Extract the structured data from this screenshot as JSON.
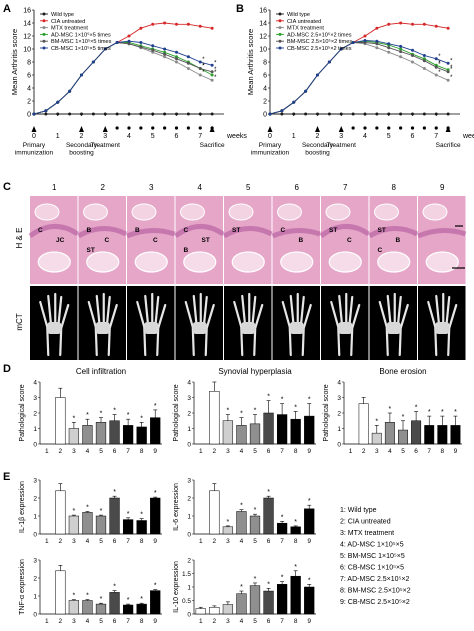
{
  "panel_labels": [
    "A",
    "B",
    "C",
    "D",
    "E"
  ],
  "colors": {
    "wild_type": "#1a1a1a",
    "cia": "#d62728",
    "mtx": "#8c8c8c",
    "ad": "#2ca02c",
    "bm": "#555555",
    "cb": "#1f3f8f",
    "histo_pink": "#e6a6c8",
    "histo_purple": "#b05a9c",
    "bar_open": "#ffffff",
    "bar_light": "#cfcfcf",
    "bar_mid": "#8f8f8f",
    "bar_dark": "#4a4a4a",
    "bar_black": "#000000"
  },
  "timeline": {
    "unit": "weeks",
    "events": [
      {
        "week": 0,
        "label": "Primary immunization"
      },
      {
        "week": 2,
        "label": "Secondary boosting"
      },
      {
        "week": 3,
        "label": "Treatment"
      },
      {
        "week": 7.5,
        "label": "Sacrifice"
      }
    ]
  },
  "panel_C": {
    "columns": [
      "1",
      "2",
      "3",
      "4",
      "5",
      "6",
      "7",
      "8",
      "9"
    ],
    "row_labels": [
      "H & E",
      "mCT"
    ],
    "tissue_labels": [
      {
        "col": 0,
        "text": "C"
      },
      {
        "col": 0,
        "text": "JC"
      },
      {
        "col": 1,
        "text": "B"
      },
      {
        "col": 1,
        "text": "C"
      },
      {
        "col": 1,
        "text": "ST"
      },
      {
        "col": 2,
        "text": "B"
      },
      {
        "col": 2,
        "text": "C"
      },
      {
        "col": 3,
        "text": "C"
      },
      {
        "col": 3,
        "text": "ST"
      },
      {
        "col": 3,
        "text": "B"
      },
      {
        "col": 4,
        "text": "ST"
      },
      {
        "col": 5,
        "text": "C"
      },
      {
        "col": 5,
        "text": "B"
      },
      {
        "col": 6,
        "text": "ST"
      },
      {
        "col": 6,
        "text": "C"
      },
      {
        "col": 7,
        "text": "ST"
      },
      {
        "col": 7,
        "text": "B"
      },
      {
        "col": 7,
        "text": "C"
      }
    ]
  },
  "group_legend": [
    "1: Wild type",
    "2: CIA untreated",
    "3: MTX treatment",
    "4: AD-MSC 1×10⁵×5",
    "5: BM-MSC 1×10⁵×5",
    "6: CB-MSC 1×10⁵×5",
    "7: AD-MSC 2.5×10⁵×2",
    "8: BM-MSC 2.5×10⁵×2",
    "9: CB-MSC 2.5×10⁵×2"
  ],
  "chart_data": [
    {
      "panel": "A",
      "type": "line",
      "ylabel": "Mean Arthritis score",
      "xlabel": "weeks",
      "xlim": [
        0,
        8
      ],
      "ylim": [
        0,
        16
      ],
      "yticks": [
        0,
        2,
        4,
        6,
        8,
        10,
        12,
        14,
        16
      ],
      "xticks": [
        0,
        1,
        2,
        3,
        4,
        5,
        6,
        7
      ],
      "x": [
        0,
        0.5,
        1,
        1.5,
        2,
        2.5,
        3,
        3.5,
        4,
        4.5,
        5,
        5.5,
        6,
        6.5,
        7,
        7.5
      ],
      "legend_position": "top-left",
      "series": [
        {
          "name": "Wild type",
          "key": "wild_type",
          "values": [
            0,
            0,
            0,
            0,
            0,
            0,
            0,
            0,
            0,
            0,
            0,
            0,
            0,
            0,
            0,
            0
          ]
        },
        {
          "name": "CIA untreated",
          "key": "cia",
          "values": [
            0,
            0.5,
            1.8,
            3.5,
            6,
            8,
            10,
            11,
            12,
            13.2,
            13.8,
            14,
            13.8,
            13.8,
            13.5,
            13.2
          ]
        },
        {
          "name": "MTX treatment",
          "key": "mtx",
          "values": [
            0,
            0.5,
            1.8,
            3.5,
            6,
            8,
            10,
            11,
            10.8,
            10.2,
            9.5,
            8.8,
            8,
            7,
            6,
            5.2
          ]
        },
        {
          "name": "AD-MSC 1×10⁵×5 times",
          "key": "ad",
          "values": [
            0,
            0.5,
            1.8,
            3.5,
            6,
            8,
            10,
            11,
            11,
            10.5,
            10,
            9.5,
            8.8,
            8,
            7,
            6
          ]
        },
        {
          "name": "BM-MSC 1×10⁵×5 times",
          "key": "bm",
          "values": [
            0,
            0.5,
            1.8,
            3.5,
            6,
            8,
            10,
            11,
            10.8,
            10.3,
            9.8,
            9.2,
            8.5,
            7.8,
            7,
            6.5
          ]
        },
        {
          "name": "CB-MSC 1×10⁵×5 times",
          "key": "cb",
          "values": [
            0,
            0.5,
            1.8,
            3.5,
            6,
            8,
            10,
            11,
            11.2,
            11,
            10.5,
            10,
            9.5,
            8.8,
            8,
            7.5
          ]
        }
      ],
      "significance_label": "*"
    },
    {
      "panel": "B",
      "type": "line",
      "ylabel": "Mean Arthritis score",
      "xlabel": "weeks",
      "xlim": [
        0,
        8
      ],
      "ylim": [
        0,
        16
      ],
      "yticks": [
        0,
        2,
        4,
        6,
        8,
        10,
        12,
        14,
        16
      ],
      "xticks": [
        0,
        1,
        2,
        3,
        4,
        5,
        6,
        7
      ],
      "x": [
        0,
        0.5,
        1,
        1.5,
        2,
        2.5,
        3,
        3.5,
        4,
        4.5,
        5,
        5.5,
        6,
        6.5,
        7,
        7.5
      ],
      "legend_position": "top-left",
      "series": [
        {
          "name": "Wild type",
          "key": "wild_type",
          "values": [
            0,
            0,
            0,
            0,
            0,
            0,
            0,
            0,
            0,
            0,
            0,
            0,
            0,
            0,
            0,
            0
          ]
        },
        {
          "name": "CIA untreated",
          "key": "cia",
          "values": [
            0,
            0.5,
            1.8,
            3.5,
            6,
            8,
            10,
            11,
            12,
            13.2,
            13.8,
            14,
            13.8,
            13.8,
            13.5,
            13.2
          ]
        },
        {
          "name": "MTX treatment",
          "key": "mtx",
          "values": [
            0,
            0.5,
            1.8,
            3.5,
            6,
            8,
            10,
            11,
            10.8,
            10.2,
            9.5,
            8.8,
            8,
            7,
            6,
            5.2
          ]
        },
        {
          "name": "AD-MSC 2.5×10⁵×2 times",
          "key": "ad",
          "values": [
            0,
            0.5,
            1.8,
            3.5,
            6,
            8,
            10,
            11,
            11.2,
            11,
            10.6,
            10,
            9.2,
            8.5,
            7.5,
            6.8
          ]
        },
        {
          "name": "BM-MSC 2.5×10⁵×2 times",
          "key": "bm",
          "values": [
            0,
            0.5,
            1.8,
            3.5,
            6,
            8,
            10,
            11,
            11,
            10.8,
            10.2,
            9.6,
            9,
            8.2,
            7.2,
            6.5
          ]
        },
        {
          "name": "CB-MSC 2.5×10⁵×2 times",
          "key": "cb",
          "values": [
            0,
            0.5,
            1.8,
            3.5,
            6,
            8,
            10,
            11,
            11.3,
            11.2,
            10.8,
            10.4,
            9.8,
            9,
            8.5,
            7.8
          ]
        }
      ],
      "significance_label": "*"
    },
    {
      "panel": "D1",
      "type": "bar",
      "title": "Cell infiltration",
      "ylabel": "Pathological score",
      "categories": [
        "1",
        "2",
        "3",
        "4",
        "5",
        "6",
        "7",
        "8",
        "9"
      ],
      "values": [
        0,
        3.0,
        1.0,
        1.2,
        1.4,
        1.5,
        1.2,
        1.1,
        1.7
      ],
      "errors": [
        0,
        0.6,
        0.4,
        0.4,
        0.3,
        0.4,
        0.4,
        0.3,
        0.5
      ],
      "ylim": [
        0,
        4
      ],
      "yticks": [
        0,
        1,
        2,
        3,
        4
      ],
      "significant": [
        false,
        false,
        true,
        true,
        true,
        true,
        true,
        true,
        true
      ]
    },
    {
      "panel": "D2",
      "type": "bar",
      "title": "Synovial hyperplasia",
      "ylabel": "Pathological score",
      "categories": [
        "1",
        "2",
        "3",
        "4",
        "5",
        "6",
        "7",
        "8",
        "9"
      ],
      "values": [
        0,
        3.4,
        1.5,
        1.2,
        1.3,
        2.0,
        1.9,
        1.6,
        1.8
      ],
      "errors": [
        0,
        0.6,
        0.4,
        0.5,
        0.6,
        0.8,
        0.7,
        0.5,
        0.8
      ],
      "ylim": [
        0,
        4
      ],
      "yticks": [
        0,
        1,
        2,
        3,
        4
      ],
      "significant": [
        false,
        false,
        true,
        true,
        true,
        true,
        true,
        true,
        true
      ]
    },
    {
      "panel": "D3",
      "type": "bar",
      "title": "Bone erosion",
      "ylabel": "Pathological score",
      "categories": [
        "1",
        "2",
        "3",
        "4",
        "5",
        "6",
        "7",
        "8",
        "9"
      ],
      "values": [
        0,
        2.6,
        0.7,
        1.4,
        0.9,
        1.5,
        1.2,
        1.2,
        1.2
      ],
      "errors": [
        0,
        0.4,
        0.5,
        0.6,
        0.6,
        0.6,
        0.6,
        0.6,
        0.6
      ],
      "ylim": [
        0,
        4
      ],
      "yticks": [
        0,
        1,
        2,
        3,
        4
      ],
      "significant": [
        false,
        false,
        true,
        true,
        true,
        true,
        true,
        true,
        true
      ]
    },
    {
      "panel": "E1",
      "type": "bar",
      "ylabel": "IL-1β expression",
      "categories": [
        "1",
        "2",
        "3",
        "4",
        "5",
        "6",
        "7",
        "8",
        "9"
      ],
      "values": [
        0,
        2.4,
        1.0,
        1.2,
        1.0,
        2.0,
        0.8,
        0.75,
        2.0
      ],
      "errors": [
        0,
        0.4,
        0.05,
        0.05,
        0.05,
        0.1,
        0.1,
        0.1,
        0.05
      ],
      "ylim": [
        0,
        3
      ],
      "yticks": [
        0,
        1,
        2,
        3
      ],
      "significant": [
        false,
        false,
        true,
        true,
        true,
        true,
        true,
        true,
        true
      ]
    },
    {
      "panel": "E2",
      "type": "bar",
      "ylabel": "IL-6 expression",
      "categories": [
        "1",
        "2",
        "3",
        "4",
        "5",
        "6",
        "7",
        "8",
        "9"
      ],
      "values": [
        0,
        2.4,
        0.4,
        1.25,
        1.0,
        2.0,
        0.6,
        0.4,
        1.4
      ],
      "errors": [
        0,
        0.4,
        0.05,
        0.1,
        0.1,
        0.1,
        0.1,
        0.05,
        0.2
      ],
      "ylim": [
        0,
        3
      ],
      "yticks": [
        0,
        1,
        2,
        3
      ],
      "significant": [
        false,
        false,
        true,
        true,
        true,
        true,
        true,
        true,
        true
      ]
    },
    {
      "panel": "E3",
      "type": "bar",
      "ylabel": "TNF-α expression",
      "categories": [
        "1",
        "2",
        "3",
        "4",
        "5",
        "6",
        "7",
        "8",
        "9"
      ],
      "values": [
        0,
        2.4,
        0.75,
        0.75,
        0.55,
        1.2,
        0.5,
        0.55,
        1.3
      ],
      "errors": [
        0,
        0.3,
        0.05,
        0.05,
        0.05,
        0.1,
        0.05,
        0.05,
        0.05
      ],
      "ylim": [
        0,
        3
      ],
      "yticks": [
        0,
        1,
        2,
        3
      ],
      "significant": [
        false,
        false,
        true,
        true,
        true,
        true,
        true,
        true,
        true
      ]
    },
    {
      "panel": "E4",
      "type": "bar",
      "ylabel": "IL-10 expression",
      "categories": [
        "1",
        "2",
        "3",
        "4",
        "5",
        "6",
        "7",
        "8",
        "9"
      ],
      "values": [
        0.2,
        0.25,
        0.35,
        0.75,
        1.05,
        0.85,
        1.1,
        1.4,
        1.0
      ],
      "errors": [
        0.05,
        0.05,
        0.1,
        0.1,
        0.1,
        0.1,
        0.1,
        0.2,
        0.1
      ],
      "ylim": [
        0,
        2
      ],
      "yticks": [
        0.0,
        0.5,
        1.0,
        1.5,
        2.0
      ],
      "significant": [
        false,
        false,
        false,
        true,
        true,
        true,
        true,
        true,
        true
      ]
    }
  ]
}
